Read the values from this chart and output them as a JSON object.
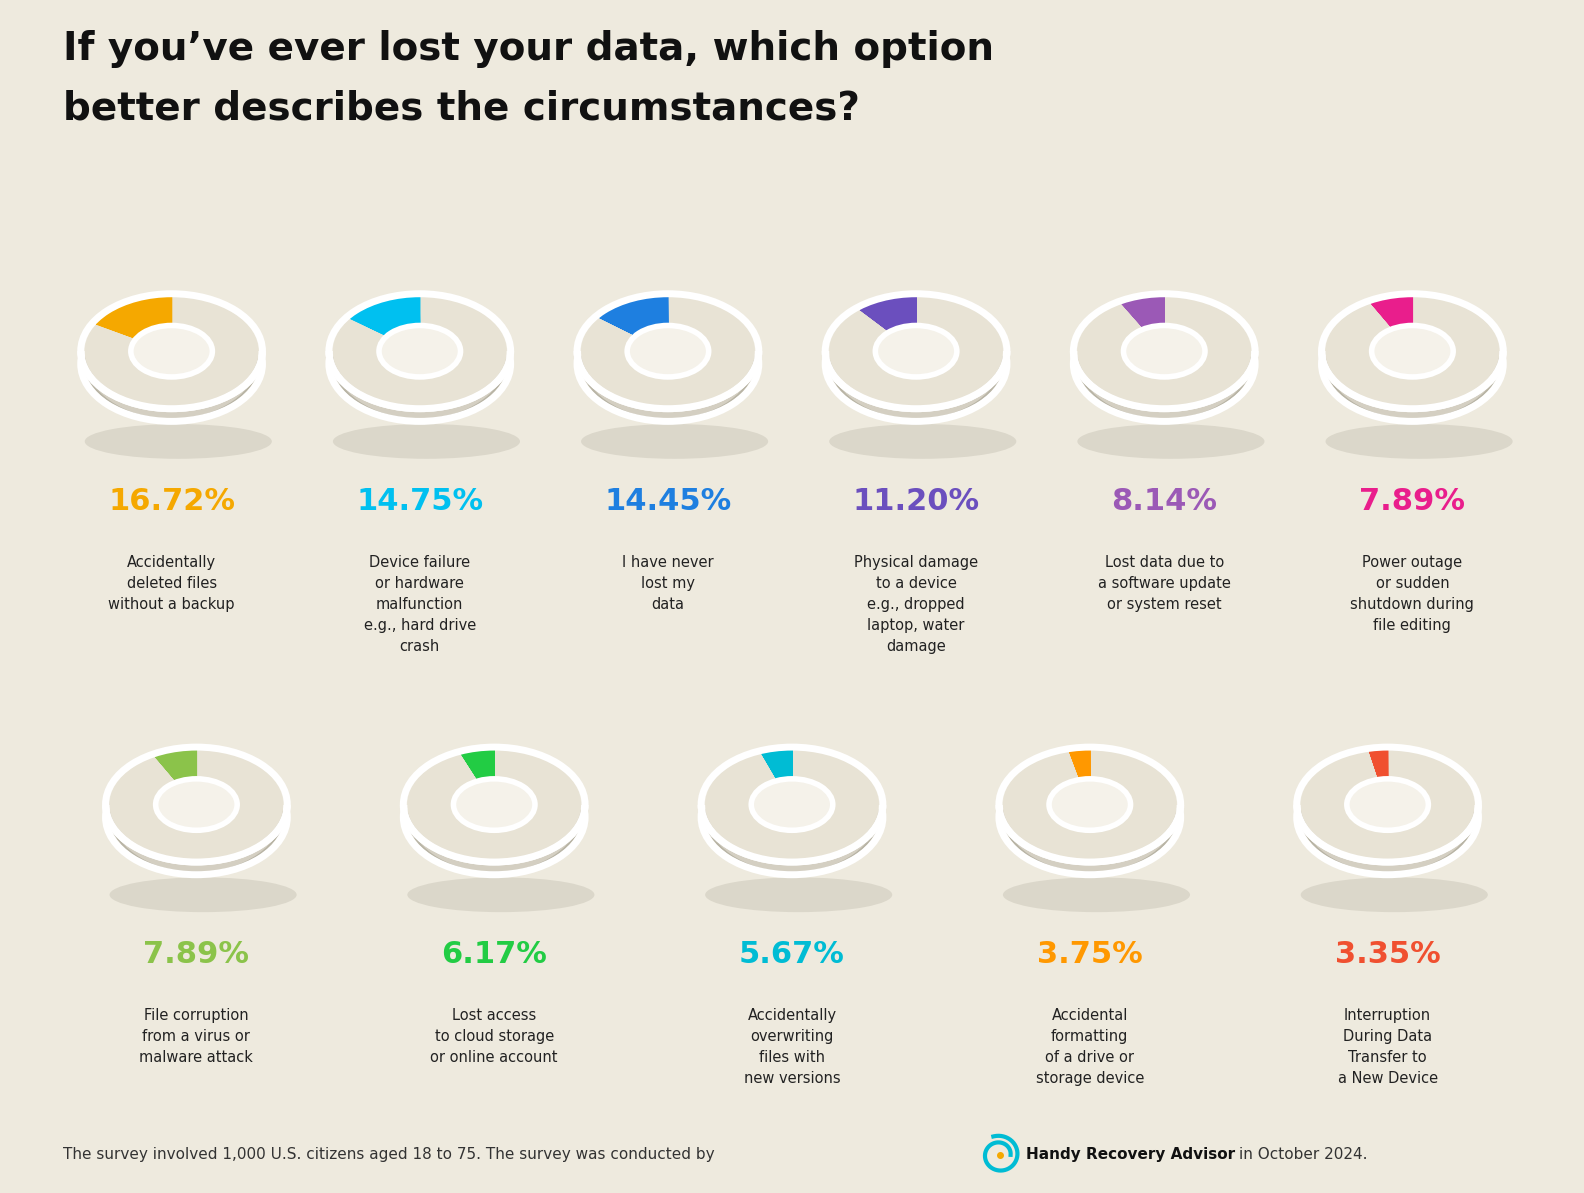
{
  "title_line1": "If you’ve ever lost your data, which option",
  "title_line2": "better describes the circumstances?",
  "bg_color": "#eeeade",
  "items": [
    {
      "pct": "16.72%",
      "pct_val": 16.72,
      "color": "#f5a800",
      "label": "Accidentally\ndeleted files\nwithout a backup"
    },
    {
      "pct": "14.75%",
      "pct_val": 14.75,
      "color": "#00c0f0",
      "label": "Device failure\nor hardware\nmalfunction\ne.g., hard drive\ncrash"
    },
    {
      "pct": "14.45%",
      "pct_val": 14.45,
      "color": "#1e7fe0",
      "label": "I have never\nlost my\ndata"
    },
    {
      "pct": "11.20%",
      "pct_val": 11.2,
      "color": "#6b4fbe",
      "label": "Physical damage\nto a device\ne.g., dropped\nlaptop, water\ndamage"
    },
    {
      "pct": "8.14%",
      "pct_val": 8.14,
      "color": "#9b59b6",
      "label": "Lost data due to\na software update\nor system reset"
    },
    {
      "pct": "7.89%",
      "pct_val": 7.89,
      "color": "#e91e8c",
      "label": "Power outage\nor sudden\nshutdown during\nfile editing"
    },
    {
      "pct": "7.89%",
      "pct_val": 7.89,
      "color": "#8bc34a",
      "label": "File corruption\nfrom a virus or\nmalware attack"
    },
    {
      "pct": "6.17%",
      "pct_val": 6.17,
      "color": "#22cc44",
      "label": "Lost access\nto cloud storage\nor online account"
    },
    {
      "pct": "5.67%",
      "pct_val": 5.67,
      "color": "#00bcd4",
      "label": "Accidentally\noverwriting\nfiles with\nnew versions"
    },
    {
      "pct": "3.75%",
      "pct_val": 3.75,
      "color": "#ff9800",
      "label": "Accidental\nformatting\nof a drive or\nstorage device"
    },
    {
      "pct": "3.35%",
      "pct_val": 3.35,
      "color": "#f05030",
      "label": "Interruption\nDuring Data\nTransfer to\na New Device"
    }
  ],
  "footer_text": "The survey involved 1,000 U.S. citizens aged 18 to 75. The survey was conducted by",
  "footer_brand": "Handy Recovery Advisor",
  "footer_suffix": "in October 2024.",
  "donut_outer_color": "#d4cfc2",
  "donut_top_color": "#e8e3d5",
  "donut_bottom_color": "#b8b4a5",
  "donut_shadow_color": "#c5c0b2",
  "hole_color": "#f5f2ea",
  "white": "#ffffff"
}
